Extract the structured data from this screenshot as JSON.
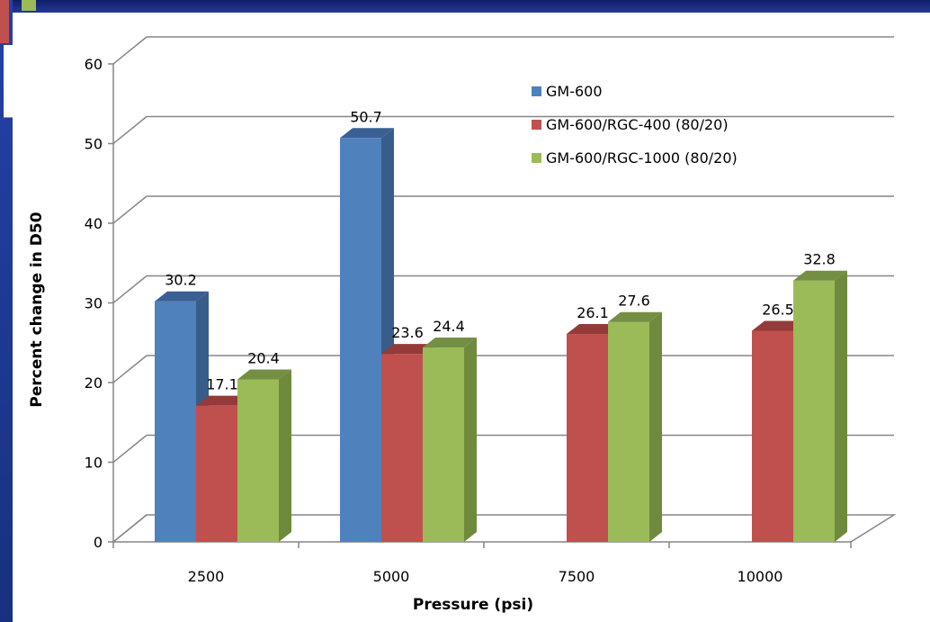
{
  "chart_data": {
    "type": "bar",
    "categories": [
      "2500",
      "5000",
      "7500",
      "10000"
    ],
    "series": [
      {
        "name": "GM-600",
        "color": "#4f81bd",
        "side": "#385d8a",
        "top": "#3a5f93",
        "values": [
          30.2,
          50.7,
          null,
          null
        ],
        "labels": [
          "30.2",
          "50.7",
          "",
          ""
        ]
      },
      {
        "name": "GM-600/RGC-400 (80/20)",
        "color": "#c0504d",
        "side": "#8c3836",
        "top": "#943a38",
        "values": [
          17.1,
          23.6,
          26.1,
          26.5
        ],
        "labels": [
          "17.1",
          "23.6",
          "26.1",
          "26.5"
        ]
      },
      {
        "name": "GM-600/RGC-1000 (80/20)",
        "color": "#9bbb59",
        "side": "#6f8a3d",
        "top": "#748f43",
        "values": [
          20.4,
          24.4,
          27.6,
          32.8
        ],
        "labels": [
          "20.4",
          "24.4",
          "27.6",
          "32.8"
        ]
      }
    ],
    "xlabel": "Pressure (psi)",
    "ylabel": "Percent change in D50",
    "ylim": [
      0,
      60
    ],
    "yticks": [
      "0",
      "10",
      "20",
      "30",
      "40",
      "50",
      "60"
    ],
    "grid": true,
    "legend": "top-right",
    "style": "3d-clustered-column"
  }
}
